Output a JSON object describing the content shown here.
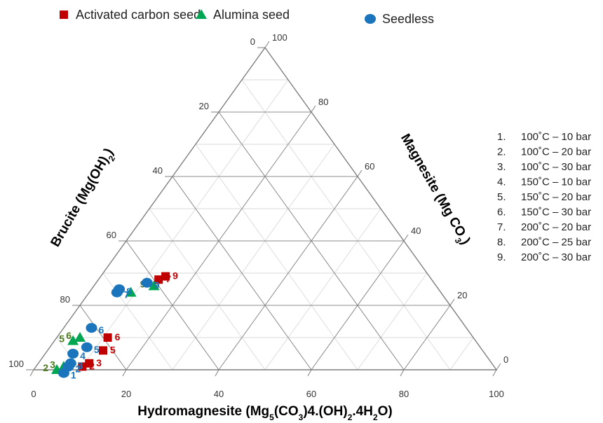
{
  "chart_data": {
    "type": "scatter",
    "subtype": "ternary",
    "axes": {
      "bottom": {
        "title_main": "Hydromagnesite (Mg",
        "title_tail": [
          {
            "text": "5",
            "sub": true
          },
          {
            "text": "(CO",
            "sub": false
          },
          {
            "text": "3",
            "sub": true
          },
          {
            "text": ")4.(OH)",
            "sub": false
          },
          {
            "text": "2",
            "sub": true
          },
          {
            "text": ".4H",
            "sub": false
          },
          {
            "text": "2",
            "sub": true
          },
          {
            "text": "O)",
            "sub": false
          }
        ],
        "ticks": [
          "0",
          "20",
          "40",
          "60",
          "80",
          "100"
        ]
      },
      "left": {
        "title_main": "Brucite (Mg(OH)",
        "title_tail": [
          {
            "text": "2",
            "sub": true
          },
          {
            "text": ")",
            "sub": false
          }
        ],
        "ticks": [
          "100",
          "80",
          "60",
          "40",
          "20",
          "0"
        ]
      },
      "right": {
        "title_main": "Magnesite (Mg CO",
        "title_tail": [
          {
            "text": "3",
            "sub": true
          },
          {
            "text": ")",
            "sub": false
          }
        ],
        "ticks": [
          "0",
          "20",
          "40",
          "60",
          "80",
          "100"
        ]
      }
    },
    "grid": true,
    "legend_placement": "top",
    "series": [
      {
        "name": "Activated carbon seed",
        "marker": "square",
        "color": "#c00000",
        "label_color": "#c00000",
        "points": [
          {
            "label": "2",
            "hydromagnesite": 10,
            "brucite": 89,
            "magnesite": 1
          },
          {
            "label": "3",
            "hydromagnesite": 11,
            "brucite": 87,
            "magnesite": 2
          },
          {
            "label": "5",
            "hydromagnesite": 12,
            "brucite": 82,
            "magnesite": 6
          },
          {
            "label": "6",
            "hydromagnesite": 11,
            "brucite": 79,
            "magnesite": 10
          },
          {
            "label": "7",
            "hydromagnesite": 13,
            "brucite": 59,
            "magnesite": 28
          },
          {
            "label": "9",
            "hydromagnesite": 14,
            "brucite": 57,
            "magnesite": 29
          }
        ]
      },
      {
        "name": "Alumina seed",
        "marker": "triangle",
        "color": "#00a651",
        "label_color": "#4e7a1e",
        "points": [
          {
            "label": "2",
            "hydromagnesite": 5,
            "brucite": 95,
            "magnesite": 0
          },
          {
            "label": "3",
            "hydromagnesite": 6,
            "brucite": 93,
            "magnesite": 1
          },
          {
            "label": "5",
            "hydromagnesite": 4,
            "brucite": 87,
            "magnesite": 9
          },
          {
            "label": "6",
            "hydromagnesite": 5,
            "brucite": 85,
            "magnesite": 10
          },
          {
            "label": "7",
            "hydromagnesite": 9,
            "brucite": 67,
            "magnesite": 24
          },
          {
            "label": "9",
            "hydromagnesite": 13,
            "brucite": 61,
            "magnesite": 26
          }
        ]
      },
      {
        "name": "Seedless",
        "marker": "circle",
        "color": "#1a75bc",
        "label_color": "#1a75bc",
        "points": [
          {
            "label": "1",
            "hydromagnesite": 7,
            "brucite": 94,
            "magnesite": -1
          },
          {
            "label": "2",
            "hydromagnesite": 7,
            "brucite": 92,
            "magnesite": 1
          },
          {
            "label": "3",
            "hydromagnesite": 7,
            "brucite": 91,
            "magnesite": 2
          },
          {
            "label": "4",
            "hydromagnesite": 6,
            "brucite": 89,
            "magnesite": 5
          },
          {
            "label": "5",
            "hydromagnesite": 8,
            "brucite": 85,
            "magnesite": 7
          },
          {
            "label": "6",
            "hydromagnesite": 6,
            "brucite": 81,
            "magnesite": 13
          },
          {
            "label": "7",
            "hydromagnesite": 6,
            "brucite": 70,
            "magnesite": 24
          },
          {
            "label": "8",
            "hydromagnesite": 6,
            "brucite": 69,
            "magnesite": 25
          },
          {
            "label": "9",
            "hydromagnesite": 11,
            "brucite": 62,
            "magnesite": 27
          }
        ]
      }
    ]
  },
  "conditions": [
    {
      "num": "1.",
      "text": "100˚C – 10 bar"
    },
    {
      "num": "2.",
      "text": "100˚C – 20 bar"
    },
    {
      "num": "3.",
      "text": "100˚C – 30 bar"
    },
    {
      "num": "4.",
      "text": "150˚C – 10 bar"
    },
    {
      "num": "5.",
      "text": "150˚C – 20 bar"
    },
    {
      "num": "6.",
      "text": "150˚C – 30 bar"
    },
    {
      "num": "7.",
      "text": "200˚C – 20 bar"
    },
    {
      "num": "8.",
      "text": "200˚C – 25 bar"
    },
    {
      "num": "9.",
      "text": "200˚C – 30 bar"
    }
  ]
}
